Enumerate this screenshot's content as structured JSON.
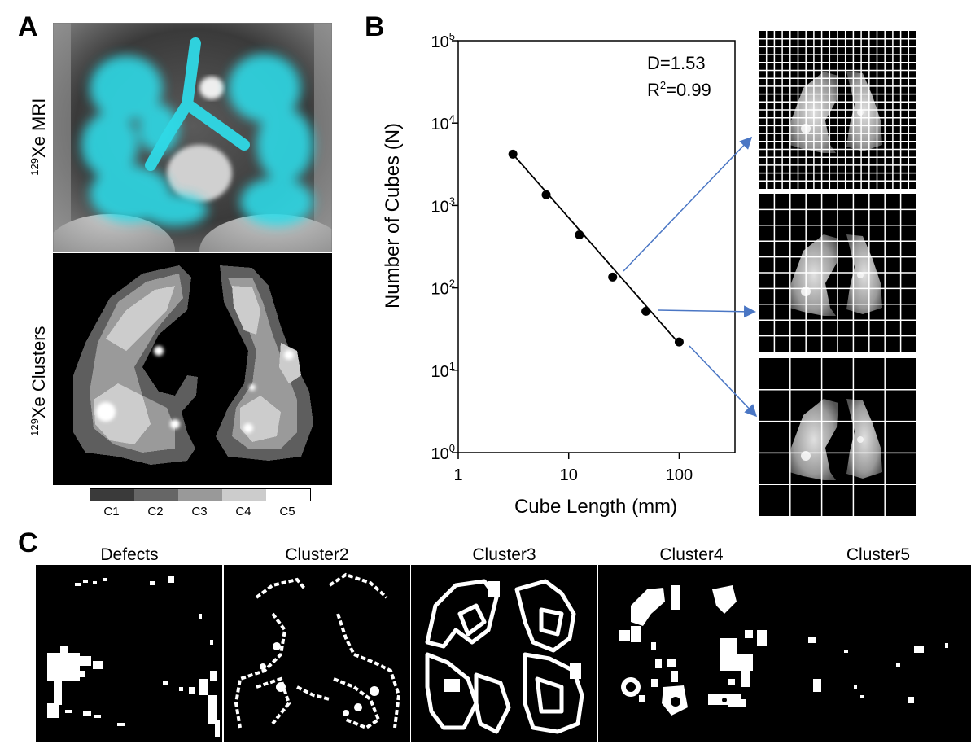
{
  "panels": {
    "a_letter": "A",
    "b_letter": "B",
    "c_letter": "C"
  },
  "panel_a": {
    "mri_label_sup": "129",
    "mri_label": "Xe MRI",
    "clusters_label_sup": "129",
    "clusters_label": "Xe Clusters",
    "colorbar": [
      {
        "label": "C1",
        "color": "#3a3a3a"
      },
      {
        "label": "C2",
        "color": "#666666"
      },
      {
        "label": "C3",
        "color": "#999999"
      },
      {
        "label": "C4",
        "color": "#cccccc"
      },
      {
        "label": "C5",
        "color": "#ffffff"
      }
    ],
    "colors": {
      "overlay": "#2fd9e6"
    }
  },
  "chart_data": {
    "type": "scatter",
    "xlabel": "Cube Length (mm)",
    "ylabel": "Number of Cubes (N)",
    "xscale": "log",
    "yscale": "log",
    "xlim": [
      1,
      320
    ],
    "ylim": [
      1,
      100000
    ],
    "x_ticks": [
      {
        "value": 1,
        "label": "1"
      },
      {
        "value": 10,
        "label": "10"
      },
      {
        "value": 100,
        "label": "100"
      }
    ],
    "y_ticks": [
      {
        "value": 1,
        "base": "10",
        "exp": "0"
      },
      {
        "value": 10,
        "base": "10",
        "exp": "1"
      },
      {
        "value": 100,
        "base": "10",
        "exp": "2"
      },
      {
        "value": 1000,
        "base": "10",
        "exp": "3"
      },
      {
        "value": 10000,
        "base": "10",
        "exp": "4"
      },
      {
        "value": 100000,
        "base": "10",
        "exp": "5"
      }
    ],
    "x": [
      3.125,
      6.25,
      12.5,
      25,
      50,
      100
    ],
    "y": [
      4200,
      1350,
      440,
      135,
      52,
      22
    ],
    "fit": {
      "x": [
        3.125,
        100
      ],
      "y": [
        4200,
        21
      ]
    },
    "annotation_d": "D=1.53",
    "annotation_r_base": "R",
    "annotation_r_exp": "2",
    "annotation_r_value": "=0.99",
    "grid": false
  },
  "grid_images": [
    {
      "divisions": 20
    },
    {
      "divisions": 10
    },
    {
      "divisions": 5
    }
  ],
  "panel_c": {
    "titles": [
      "Defects",
      "Cluster2",
      "Cluster3",
      "Cluster4",
      "Cluster5"
    ]
  }
}
